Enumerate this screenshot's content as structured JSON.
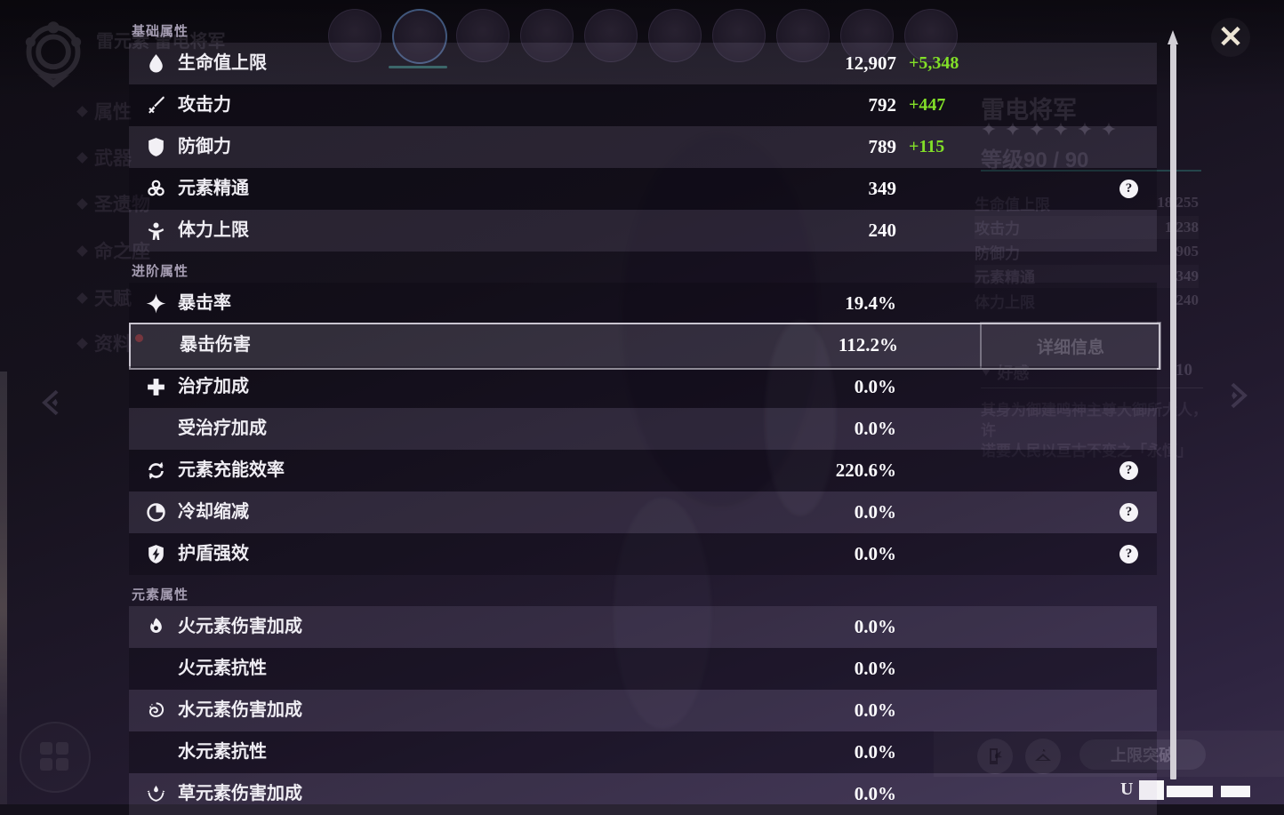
{
  "panel": {
    "help_icon_glyph": "?",
    "sections": [
      {
        "title": "基础属性",
        "rows": [
          {
            "icon": "hp-icon",
            "label": "生命值上限",
            "value": "12,907",
            "bonus": "+5,348"
          },
          {
            "icon": "atk-icon",
            "label": "攻击力",
            "value": "792",
            "bonus": "+447"
          },
          {
            "icon": "def-icon",
            "label": "防御力",
            "value": "789",
            "bonus": "+115"
          },
          {
            "icon": "em-icon",
            "label": "元素精通",
            "value": "349",
            "help": true
          },
          {
            "icon": "stamina-icon",
            "label": "体力上限",
            "value": "240"
          }
        ]
      },
      {
        "title": "进阶属性",
        "rows": [
          {
            "icon": "crit-rate-icon",
            "label": "暴击率",
            "value": "19.4%"
          },
          {
            "icon": null,
            "label": "暴击伤害",
            "value": "112.2%",
            "highlighted": true
          },
          {
            "icon": "healing-icon",
            "label": "治疗加成",
            "value": "0.0%"
          },
          {
            "icon": null,
            "label": "受治疗加成",
            "value": "0.0%"
          },
          {
            "icon": "recharge-icon",
            "label": "元素充能效率",
            "value": "220.6%",
            "help": true
          },
          {
            "icon": "cooldown-icon",
            "label": "冷却缩减",
            "value": "0.0%",
            "help": true
          },
          {
            "icon": "shield-icon",
            "label": "护盾强效",
            "value": "0.0%",
            "help": true
          }
        ]
      },
      {
        "title": "元素属性",
        "rows": [
          {
            "icon": "pyro-icon",
            "label": "火元素伤害加成",
            "value": "0.0%"
          },
          {
            "icon": null,
            "label": "火元素抗性",
            "value": "0.0%"
          },
          {
            "icon": "hydro-icon",
            "label": "水元素伤害加成",
            "value": "0.0%"
          },
          {
            "icon": null,
            "label": "水元素抗性",
            "value": "0.0%"
          },
          {
            "icon": "dendro-icon",
            "label": "草元素伤害加成",
            "value": "0.0%"
          }
        ]
      }
    ]
  },
  "background": {
    "top_title": "雷元素 雷电将军",
    "character_name": "雷电将军",
    "star_count": 6,
    "level_label": "等级90 / 90",
    "nav_items": [
      "属性",
      "武器",
      "圣遗物",
      "命之座",
      "天赋",
      "资料"
    ],
    "stats": [
      {
        "label": "生命值上限",
        "value": "18,255"
      },
      {
        "label": "攻击力",
        "value": "1,238"
      },
      {
        "label": "防御力",
        "value": "905"
      },
      {
        "label": "元素精通",
        "value": "349"
      },
      {
        "label": "体力上限",
        "value": "240"
      }
    ],
    "details_button": "详细信息",
    "friendship_label": "好感",
    "friendship_value": "10",
    "flavor_lines": [
      "其身为御建鸣神主尊大御所大人，许",
      "诺要人民以亘古不变之「永恒」"
    ],
    "cap_button": "上限突破",
    "uid_prefix": "U",
    "avatars": {
      "count": 10,
      "selected_index": 1
    }
  },
  "colors": {
    "bonus_green": "#82df28",
    "scrollbar": "#d2cfd6",
    "close_x": "#ece4d4",
    "highlight_border": "#c9c5d0"
  }
}
